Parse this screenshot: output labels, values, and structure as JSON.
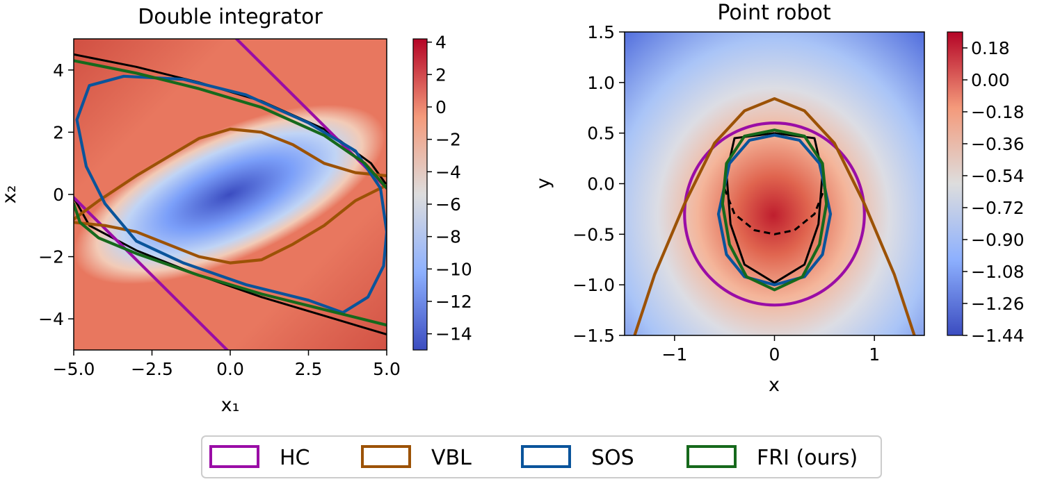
{
  "chart_data": [
    {
      "type": "heatmap",
      "title": "Double integrator",
      "xlabel": "x₁",
      "ylabel": "x₂",
      "xlim": [
        -5.0,
        5.0
      ],
      "ylim": [
        -5.0,
        5.0
      ],
      "xticks": [
        -5.0,
        -2.5,
        0.0,
        2.5,
        5.0
      ],
      "xtick_labels": [
        "−5.0",
        "−2.5",
        "0.0",
        "2.5",
        "5.0"
      ],
      "yticks": [
        -4,
        -2,
        0,
        2,
        4
      ],
      "ytick_labels": [
        "−4",
        "−2",
        "0",
        "2",
        "4"
      ],
      "colorbar": {
        "range": [
          -15,
          4.2
        ],
        "ticks": [
          4,
          2,
          0,
          -2,
          -4,
          -6,
          -8,
          -10,
          -12,
          -14
        ],
        "labels": [
          "4",
          "2",
          "0",
          "−2",
          "−4",
          "−6",
          "−8",
          "−10",
          "−12",
          "−14"
        ]
      },
      "series": [
        {
          "name": "HC",
          "color": "#9a0da6",
          "curves": [
            [
              [
                0.2,
                5.0
              ],
              [
                5.0,
                0.2
              ]
            ],
            [
              [
                -5.0,
                -0.1
              ],
              [
                -0.1,
                -5.0
              ]
            ]
          ]
        },
        {
          "name": "VBL",
          "color": "#9c5206",
          "curves": [
            [
              [
                -5.0,
                -0.8
              ],
              [
                -4.2,
                -0.2
              ],
              [
                -3.0,
                0.6
              ],
              [
                -2.0,
                1.2
              ],
              [
                -1.0,
                1.8
              ],
              [
                0.0,
                2.1
              ],
              [
                1.0,
                2.0
              ],
              [
                2.0,
                1.6
              ],
              [
                3.0,
                1.0
              ],
              [
                4.0,
                0.7
              ],
              [
                5.0,
                0.6
              ]
            ],
            [
              [
                -5.0,
                -0.9
              ],
              [
                -4.0,
                -1.0
              ],
              [
                -3.0,
                -1.2
              ],
              [
                -2.0,
                -1.6
              ],
              [
                -1.0,
                -2.0
              ],
              [
                0.0,
                -2.2
              ],
              [
                1.0,
                -2.1
              ],
              [
                2.0,
                -1.6
              ],
              [
                3.0,
                -1.0
              ],
              [
                4.0,
                -0.2
              ],
              [
                5.0,
                0.3
              ]
            ]
          ]
        },
        {
          "name": "SOS",
          "color": "#0a549b",
          "curves": [
            [
              [
                -3.4,
                3.8
              ],
              [
                -1.5,
                3.7
              ],
              [
                0.5,
                3.2
              ],
              [
                2.5,
                2.3
              ],
              [
                4.0,
                1.4
              ],
              [
                4.8,
                0.2
              ],
              [
                5.0,
                -1.2
              ],
              [
                4.9,
                -2.3
              ],
              [
                4.4,
                -3.3
              ],
              [
                3.6,
                -3.8
              ],
              [
                2.5,
                -3.4
              ],
              [
                0.5,
                -2.9
              ],
              [
                -1.5,
                -2.2
              ],
              [
                -3.0,
                -1.5
              ],
              [
                -4.0,
                -0.3
              ],
              [
                -4.6,
                0.9
              ],
              [
                -4.9,
                2.4
              ],
              [
                -4.5,
                3.5
              ],
              [
                -3.4,
                3.8
              ]
            ]
          ]
        },
        {
          "name": "FRI (ours)",
          "color": "#16691c",
          "curves": [
            [
              [
                -5.0,
                4.3
              ],
              [
                -3.0,
                3.9
              ],
              [
                -1.0,
                3.4
              ],
              [
                1.0,
                2.8
              ],
              [
                3.0,
                1.9
              ],
              [
                4.3,
                1.0
              ],
              [
                5.0,
                0.2
              ]
            ],
            [
              [
                -5.0,
                -0.3
              ],
              [
                -4.8,
                -0.9
              ],
              [
                -4.2,
                -1.4
              ],
              [
                -3.0,
                -1.9
              ],
              [
                -1.0,
                -2.6
              ],
              [
                1.0,
                -3.2
              ],
              [
                3.0,
                -3.7
              ],
              [
                5.0,
                -4.2
              ]
            ]
          ]
        }
      ],
      "reference_curves": [
        {
          "style": "solid",
          "curves": [
            [
              [
                -5.0,
                4.5
              ],
              [
                -3.0,
                4.1
              ],
              [
                -1.0,
                3.6
              ],
              [
                1.0,
                3.0
              ],
              [
                3.0,
                2.1
              ],
              [
                4.5,
                1.0
              ],
              [
                5.0,
                0.3
              ]
            ],
            [
              [
                -5.0,
                -0.1
              ],
              [
                -4.5,
                -1.0
              ],
              [
                -3.0,
                -1.8
              ],
              [
                -1.0,
                -2.6
              ],
              [
                1.0,
                -3.3
              ],
              [
                3.0,
                -3.9
              ],
              [
                5.0,
                -4.5
              ]
            ]
          ]
        }
      ]
    },
    {
      "type": "heatmap",
      "title": "Point robot",
      "xlabel": "x",
      "ylabel": "y",
      "xlim": [
        -1.5,
        1.5
      ],
      "ylim": [
        -1.5,
        1.5
      ],
      "xticks": [
        -1,
        0,
        1
      ],
      "xtick_labels": [
        "−1",
        "0",
        "1"
      ],
      "yticks": [
        1.5,
        1.0,
        0.5,
        0.0,
        -0.5,
        -1.0,
        -1.5
      ],
      "ytick_labels": [
        "1.5",
        "1.0",
        "0.5",
        "0.0",
        "−0.5",
        "−1.0",
        "−1.5"
      ],
      "colorbar": {
        "range": [
          -1.44,
          0.27
        ],
        "ticks": [
          0.18,
          0.0,
          -0.18,
          -0.36,
          -0.54,
          -0.72,
          -0.9,
          -1.08,
          -1.26,
          -1.44
        ],
        "labels": [
          "0.18",
          "0.00",
          "−0.18",
          "−0.36",
          "−0.54",
          "−0.72",
          "−0.90",
          "−1.08",
          "−1.26",
          "−1.44"
        ]
      },
      "series": [
        {
          "name": "HC",
          "color": "#9a0da6",
          "circle": {
            "cx": 0.0,
            "cy": -0.3,
            "r": 0.9
          }
        },
        {
          "name": "VBL",
          "color": "#9c5206",
          "curves": [
            [
              [
                -1.4,
                -1.5
              ],
              [
                -1.2,
                -0.9
              ],
              [
                -0.9,
                -0.2
              ],
              [
                -0.6,
                0.4
              ],
              [
                -0.3,
                0.72
              ],
              [
                0.0,
                0.84
              ],
              [
                0.3,
                0.72
              ],
              [
                0.6,
                0.4
              ],
              [
                0.9,
                -0.2
              ],
              [
                1.2,
                -0.9
              ],
              [
                1.4,
                -1.5
              ]
            ]
          ]
        },
        {
          "name": "SOS",
          "color": "#0a549b",
          "curves": [
            [
              [
                0.0,
                0.48
              ],
              [
                0.25,
                0.43
              ],
              [
                0.45,
                0.2
              ],
              [
                0.56,
                -0.3
              ],
              [
                0.48,
                -0.7
              ],
              [
                0.3,
                -0.92
              ],
              [
                0.0,
                -1.0
              ],
              [
                -0.3,
                -0.92
              ],
              [
                -0.48,
                -0.7
              ],
              [
                -0.56,
                -0.3
              ],
              [
                -0.45,
                0.2
              ],
              [
                -0.25,
                0.43
              ],
              [
                0.0,
                0.48
              ]
            ]
          ]
        },
        {
          "name": "FRI (ours)",
          "color": "#16691c",
          "curves": [
            [
              [
                0.0,
                0.53
              ],
              [
                0.3,
                0.47
              ],
              [
                0.48,
                0.2
              ],
              [
                0.52,
                -0.2
              ],
              [
                0.45,
                -0.6
              ],
              [
                0.28,
                -0.92
              ],
              [
                0.0,
                -1.05
              ],
              [
                -0.28,
                -0.92
              ],
              [
                -0.45,
                -0.6
              ],
              [
                -0.52,
                -0.2
              ],
              [
                -0.48,
                0.2
              ],
              [
                -0.3,
                0.47
              ],
              [
                0.0,
                0.53
              ]
            ]
          ]
        }
      ],
      "reference_curves": [
        {
          "style": "solid",
          "curves": [
            [
              [
                0.0,
                0.5
              ],
              [
                0.4,
                0.45
              ],
              [
                0.48,
                0.1
              ],
              [
                0.44,
                -0.4
              ],
              [
                0.3,
                -0.8
              ],
              [
                0.0,
                -0.98
              ],
              [
                -0.3,
                -0.8
              ],
              [
                -0.44,
                -0.4
              ],
              [
                -0.48,
                0.1
              ],
              [
                -0.4,
                0.45
              ],
              [
                0.0,
                0.5
              ]
            ]
          ]
        },
        {
          "style": "dashed",
          "curves": [
            [
              [
                -0.5,
                -0.05
              ],
              [
                -0.4,
                -0.3
              ],
              [
                -0.2,
                -0.46
              ],
              [
                0.0,
                -0.5
              ],
              [
                0.2,
                -0.46
              ],
              [
                0.4,
                -0.3
              ],
              [
                0.5,
                -0.05
              ]
            ]
          ]
        }
      ]
    }
  ],
  "legend": {
    "items": [
      {
        "label": "HC",
        "color": "#9a0da6"
      },
      {
        "label": "VBL",
        "color": "#9c5206"
      },
      {
        "label": "SOS",
        "color": "#0a549b"
      },
      {
        "label": "FRI (ours)",
        "color": "#16691c"
      }
    ]
  }
}
